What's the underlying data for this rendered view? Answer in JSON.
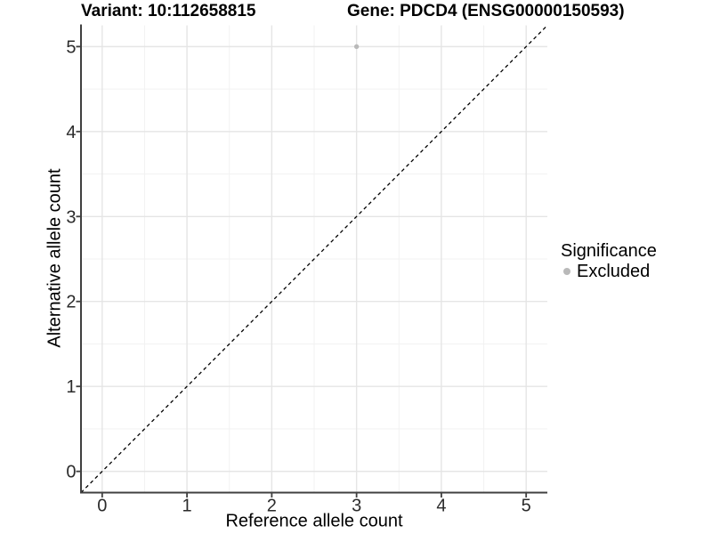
{
  "colors": {
    "background": "#ffffff",
    "axis_line": "#404040",
    "grid_major": "#e5e5e5",
    "grid_minor": "#f2f2f2",
    "tick_label": "#2b2b2b",
    "identity_line": "#000000",
    "point_excluded": "#b9b9b9"
  },
  "chart_data": {
    "type": "scatter",
    "title_left": "Variant: 10:112658815",
    "title_right": "Gene: PDCD4 (ENSG00000150593)",
    "xlabel": "Reference allele count",
    "ylabel": "Alternative allele count",
    "xlim": [
      -0.25,
      5.25
    ],
    "ylim": [
      -0.25,
      5.25
    ],
    "x_ticks": [
      0,
      1,
      2,
      3,
      4,
      5
    ],
    "y_ticks": [
      0,
      1,
      2,
      3,
      4,
      5
    ],
    "x_minor": [
      0.5,
      1.5,
      2.5,
      3.5,
      4.5
    ],
    "y_minor": [
      0.5,
      1.5,
      2.5,
      3.5,
      4.5
    ],
    "grid": true,
    "legend_position": "right",
    "identity_line": {
      "type": "y=x",
      "style": "dashed"
    },
    "points": [
      {
        "x": 3,
        "y": 5,
        "series": "Excluded"
      }
    ],
    "legend": {
      "title": "Significance",
      "items": [
        {
          "label": "Excluded",
          "color": "#b9b9b9"
        }
      ]
    }
  }
}
